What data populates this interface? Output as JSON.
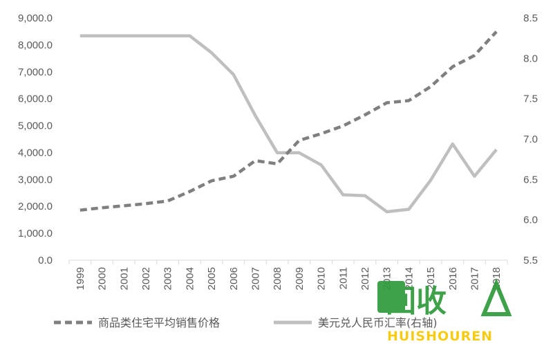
{
  "chart_data": {
    "type": "line",
    "categories": [
      "1999",
      "2000",
      "2001",
      "2002",
      "2003",
      "2004",
      "2005",
      "2006",
      "2007",
      "2008",
      "2009",
      "2010",
      "2011",
      "2012",
      "2013",
      "2014",
      "2015",
      "2016",
      "2017",
      "2018"
    ],
    "series": [
      {
        "name": "商品类住宅平均销售价格",
        "axis": "left",
        "style": "dashed",
        "color": "#7f7f7f",
        "values": [
          1860,
          1950,
          2020,
          2100,
          2200,
          2550,
          2950,
          3120,
          3700,
          3580,
          4450,
          4700,
          4990,
          5400,
          5850,
          5930,
          6450,
          7190,
          7610,
          8490
        ]
      },
      {
        "name": "美元兑人民币汇率(右轴)",
        "axis": "right",
        "style": "solid",
        "color": "#bfbfbf",
        "values": [
          8.28,
          8.28,
          8.28,
          8.28,
          8.28,
          8.28,
          8.07,
          7.8,
          7.29,
          6.83,
          6.83,
          6.68,
          6.31,
          6.3,
          6.1,
          6.13,
          6.49,
          6.94,
          6.54,
          6.87
        ]
      }
    ],
    "y_left": {
      "ylim": [
        0,
        9000
      ],
      "ticks": [
        "0.0",
        "1,000.0",
        "2,000.0",
        "3,000.0",
        "4,000.0",
        "5,000.0",
        "6,000.0",
        "7,000.0",
        "8,000.0",
        "9,000.0"
      ]
    },
    "y_right": {
      "ylim": [
        5.5,
        8.5
      ],
      "ticks": [
        "5.5",
        "6.0",
        "6.5",
        "7.0",
        "7.5",
        "8.0",
        "8.5"
      ]
    },
    "grid": false,
    "legend": "bottom"
  },
  "watermark": {
    "logo_text": "回收",
    "sub_text": "HUISHOUREN",
    "colors": {
      "green": "#2f9a3a",
      "yellow": "#f6c700"
    }
  }
}
